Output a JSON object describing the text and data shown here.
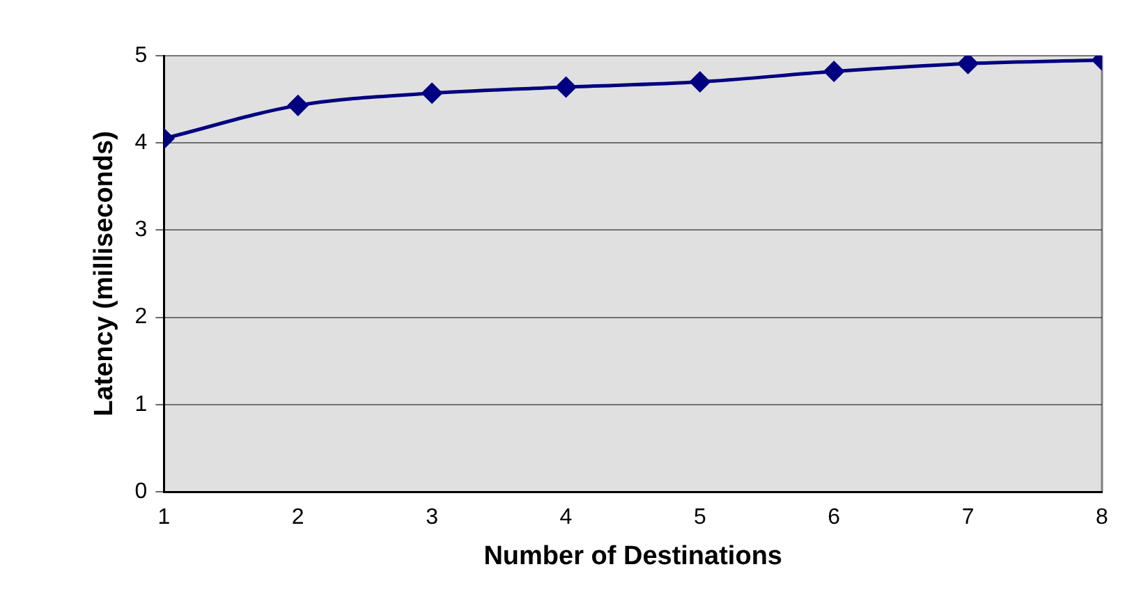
{
  "chart_data": {
    "type": "line",
    "xlabel": "Number of Destinations",
    "ylabel": "Latency (milliseconds)",
    "x": [
      1,
      2,
      3,
      4,
      5,
      6,
      7,
      8
    ],
    "series": [
      {
        "color": "#000080",
        "values": [
          4.05,
          4.43,
          4.57,
          4.64,
          4.7,
          4.82,
          4.91,
          4.95
        ]
      }
    ],
    "xlim": [
      1,
      8
    ],
    "xticks": [
      1,
      2,
      3,
      4,
      5,
      6,
      7,
      8
    ],
    "ylim": [
      0,
      5
    ],
    "yticks": [
      0,
      1,
      2,
      3,
      4,
      5
    ],
    "grid": "y",
    "legend": false,
    "marker": "diamond",
    "line_style": "solid"
  }
}
